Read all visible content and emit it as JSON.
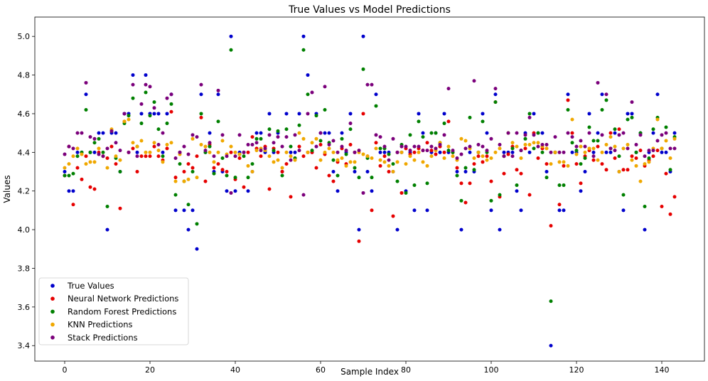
{
  "chart_data": {
    "type": "scatter",
    "title": "True Values vs Model Predictions",
    "xlabel": "Sample Index",
    "ylabel": "Values",
    "xlim": [
      -7,
      150
    ],
    "ylim": [
      3.32,
      5.1
    ],
    "xticks": [
      0,
      20,
      40,
      60,
      80,
      100,
      120,
      140
    ],
    "yticks": [
      3.4,
      3.6,
      3.8,
      4.0,
      4.2,
      4.4,
      4.6,
      4.8,
      5.0
    ],
    "ytick_labels": [
      "3.4",
      "3.6",
      "3.8",
      "4.0",
      "4.2",
      "4.4",
      "4.6",
      "4.8",
      "5.0"
    ],
    "grid": false,
    "legend_position": "lower-left",
    "x": [
      0,
      1,
      2,
      3,
      4,
      5,
      6,
      7,
      8,
      9,
      10,
      11,
      12,
      13,
      14,
      15,
      16,
      17,
      18,
      19,
      20,
      21,
      22,
      23,
      24,
      25,
      26,
      27,
      28,
      29,
      30,
      31,
      32,
      33,
      34,
      35,
      36,
      37,
      38,
      39,
      40,
      41,
      42,
      43,
      44,
      45,
      46,
      47,
      48,
      49,
      50,
      51,
      52,
      53,
      54,
      55,
      56,
      57,
      58,
      59,
      60,
      61,
      62,
      63,
      64,
      65,
      66,
      67,
      68,
      69,
      70,
      71,
      72,
      73,
      74,
      75,
      76,
      77,
      78,
      79,
      80,
      81,
      82,
      83,
      84,
      85,
      86,
      87,
      88,
      89,
      90,
      91,
      92,
      93,
      94,
      95,
      96,
      97,
      98,
      99,
      100,
      101,
      102,
      103,
      104,
      105,
      106,
      107,
      108,
      109,
      110,
      111,
      112,
      113,
      114,
      115,
      116,
      117,
      118,
      119,
      120,
      121,
      122,
      123,
      124,
      125,
      126,
      127,
      128,
      129,
      130,
      131,
      132,
      133,
      134,
      135,
      136,
      137,
      138,
      139,
      140,
      141,
      142,
      143
    ],
    "series": [
      {
        "name": "True Values",
        "color": "#0000cc",
        "values": [
          4.3,
          4.2,
          4.2,
          4.4,
          4.4,
          4.7,
          4.4,
          4.4,
          4.5,
          4.5,
          4.0,
          4.5,
          4.5,
          4.3,
          4.6,
          4.6,
          4.8,
          4.4,
          4.6,
          4.8,
          4.6,
          4.6,
          4.6,
          4.4,
          4.6,
          4.7,
          4.1,
          4.4,
          4.1,
          4.0,
          4.1,
          3.9,
          4.7,
          4.4,
          4.5,
          4.3,
          4.7,
          4.3,
          4.2,
          5.0,
          4.2,
          4.4,
          4.4,
          4.2,
          4.3,
          4.5,
          4.5,
          4.4,
          4.6,
          4.4,
          4.5,
          4.3,
          4.6,
          4.4,
          4.4,
          4.6,
          5.0,
          4.8,
          4.4,
          4.6,
          4.5,
          4.5,
          4.5,
          4.3,
          4.2,
          4.5,
          4.4,
          4.6,
          4.3,
          4.0,
          5.0,
          4.3,
          4.2,
          4.7,
          4.4,
          4.4,
          4.4,
          4.3,
          4.0,
          4.4,
          4.2,
          4.4,
          4.1,
          4.6,
          4.5,
          4.1,
          4.4,
          4.5,
          4.4,
          4.6,
          4.4,
          4.4,
          4.3,
          4.0,
          4.3,
          4.4,
          4.3,
          4.4,
          4.6,
          4.5,
          4.1,
          4.7,
          4.0,
          4.4,
          4.4,
          4.4,
          4.2,
          4.1,
          4.5,
          4.4,
          4.6,
          4.5,
          4.5,
          4.3,
          3.4,
          4.4,
          4.1,
          4.1,
          4.7,
          4.4,
          4.4,
          4.2,
          4.3,
          4.6,
          4.4,
          4.5,
          4.7,
          4.4,
          4.4,
          4.5,
          4.3,
          4.1,
          4.6,
          4.6,
          4.4,
          4.5,
          4.0,
          4.4,
          4.5,
          4.7,
          4.4,
          4.4,
          4.3,
          4.5
        ]
      },
      {
        "name": "Neural Network Predictions",
        "color": "#e60000",
        "values": [
          4.28,
          4.43,
          4.13,
          4.32,
          4.26,
          4.38,
          4.22,
          4.21,
          4.4,
          4.38,
          4.37,
          4.43,
          4.34,
          4.11,
          4.56,
          4.4,
          4.42,
          4.3,
          4.38,
          4.38,
          4.38,
          4.43,
          4.38,
          4.36,
          4.42,
          4.61,
          4.27,
          4.4,
          4.3,
          4.34,
          4.32,
          4.38,
          4.58,
          4.25,
          4.44,
          4.32,
          4.34,
          4.31,
          4.3,
          4.4,
          4.26,
          4.37,
          4.22,
          4.4,
          4.48,
          4.42,
          4.38,
          4.43,
          4.21,
          4.42,
          4.4,
          4.3,
          4.34,
          4.17,
          4.37,
          4.43,
          4.38,
          4.4,
          4.4,
          4.32,
          4.44,
          4.39,
          4.28,
          4.25,
          4.35,
          4.42,
          4.34,
          4.44,
          4.4,
          3.94,
          4.6,
          4.38,
          4.1,
          4.45,
          4.33,
          4.38,
          4.3,
          4.07,
          4.4,
          4.19,
          4.42,
          4.39,
          4.4,
          4.42,
          4.41,
          4.45,
          4.41,
          4.39,
          4.43,
          4.4,
          4.56,
          4.4,
          4.32,
          4.24,
          4.14,
          4.24,
          4.34,
          4.38,
          4.35,
          4.38,
          4.25,
          4.66,
          4.17,
          4.29,
          4.39,
          4.43,
          4.31,
          4.29,
          4.42,
          4.18,
          4.5,
          4.37,
          4.42,
          4.34,
          4.02,
          4.4,
          4.13,
          4.33,
          4.67,
          4.5,
          4.34,
          4.24,
          4.38,
          4.41,
          4.36,
          4.43,
          4.34,
          4.31,
          4.5,
          4.37,
          4.52,
          4.31,
          4.31,
          4.38,
          4.37,
          4.41,
          4.33,
          4.36,
          4.38,
          4.41,
          4.12,
          4.29,
          4.08,
          4.17
        ]
      },
      {
        "name": "Random Forest Predictions",
        "color": "#008000",
        "values": [
          4.28,
          4.28,
          4.29,
          4.38,
          4.4,
          4.62,
          4.4,
          4.45,
          4.47,
          4.4,
          4.12,
          4.51,
          4.37,
          4.3,
          4.55,
          4.59,
          4.68,
          4.43,
          4.55,
          4.71,
          4.59,
          4.66,
          4.52,
          4.38,
          4.55,
          4.65,
          4.18,
          4.34,
          4.25,
          4.13,
          4.3,
          4.03,
          4.6,
          4.4,
          4.43,
          4.29,
          4.56,
          4.37,
          4.28,
          4.93,
          4.27,
          4.39,
          4.38,
          4.27,
          4.34,
          4.47,
          4.47,
          4.41,
          4.52,
          4.41,
          4.51,
          4.28,
          4.52,
          4.43,
          4.37,
          4.54,
          4.93,
          4.7,
          4.41,
          4.59,
          4.46,
          4.62,
          4.45,
          4.36,
          4.28,
          4.47,
          4.39,
          4.52,
          4.32,
          4.27,
          4.83,
          4.37,
          4.27,
          4.64,
          4.42,
          4.42,
          4.39,
          4.34,
          4.25,
          4.44,
          4.19,
          4.49,
          4.23,
          4.56,
          4.48,
          4.24,
          4.5,
          4.5,
          4.45,
          4.55,
          4.41,
          4.4,
          4.28,
          4.15,
          4.32,
          4.58,
          4.31,
          4.4,
          4.56,
          4.4,
          4.15,
          4.66,
          4.18,
          4.38,
          4.5,
          4.42,
          4.23,
          4.41,
          4.47,
          4.6,
          4.42,
          4.5,
          4.4,
          4.27,
          3.63,
          4.4,
          4.23,
          4.23,
          4.62,
          4.45,
          4.41,
          4.34,
          4.37,
          4.53,
          4.46,
          4.46,
          4.62,
          4.67,
          4.42,
          4.52,
          4.38,
          4.18,
          4.57,
          4.58,
          4.4,
          4.5,
          4.12,
          4.37,
          4.52,
          4.58,
          4.42,
          4.53,
          4.31,
          4.48
        ]
      },
      {
        "name": "KNN Predictions",
        "color": "#f0a800",
        "values": [
          4.32,
          4.34,
          4.38,
          4.42,
          4.39,
          4.34,
          4.35,
          4.35,
          4.42,
          4.38,
          4.32,
          4.52,
          4.38,
          4.36,
          4.56,
          4.57,
          4.45,
          4.43,
          4.46,
          4.4,
          4.4,
          4.45,
          4.41,
          4.35,
          4.44,
          4.45,
          4.25,
          4.39,
          4.25,
          4.26,
          4.47,
          4.27,
          4.44,
          4.43,
          4.4,
          4.35,
          4.4,
          4.46,
          4.39,
          4.43,
          4.4,
          4.39,
          4.4,
          4.33,
          4.3,
          4.41,
          4.42,
          4.41,
          4.38,
          4.35,
          4.36,
          4.32,
          4.4,
          4.38,
          4.36,
          4.5,
          4.47,
          4.4,
          4.45,
          4.47,
          4.36,
          4.4,
          4.42,
          4.4,
          4.36,
          4.37,
          4.33,
          4.35,
          4.35,
          4.4,
          4.39,
          4.38,
          4.37,
          4.42,
          4.36,
          4.35,
          4.33,
          4.3,
          4.35,
          4.4,
          4.34,
          4.38,
          4.36,
          4.4,
          4.35,
          4.33,
          4.38,
          4.41,
          4.45,
          4.37,
          4.43,
          4.38,
          4.36,
          4.47,
          4.46,
          4.42,
          4.37,
          4.4,
          4.38,
          4.36,
          4.37,
          4.4,
          4.42,
          4.38,
          4.5,
          4.45,
          4.43,
          4.37,
          4.44,
          4.44,
          4.45,
          4.45,
          4.43,
          4.42,
          4.34,
          4.4,
          4.35,
          4.35,
          4.33,
          4.57,
          4.39,
          4.43,
          4.4,
          4.42,
          4.42,
          4.36,
          4.4,
          4.44,
          4.48,
          4.43,
          4.3,
          4.42,
          4.44,
          4.36,
          4.33,
          4.25,
          4.34,
          4.35,
          4.42,
          4.57,
          4.42,
          4.46,
          4.37,
          4.47
        ]
      },
      {
        "name": "Stack Predictions",
        "color": "#7b007b",
        "values": [
          4.39,
          4.43,
          4.42,
          4.5,
          4.5,
          4.76,
          4.48,
          4.47,
          4.39,
          4.38,
          4.42,
          4.51,
          4.45,
          4.41,
          4.6,
          4.4,
          4.75,
          4.38,
          4.65,
          4.75,
          4.74,
          4.63,
          4.44,
          4.5,
          4.68,
          4.7,
          4.37,
          4.4,
          4.43,
          4.39,
          4.49,
          4.48,
          4.75,
          4.41,
          4.45,
          4.38,
          4.72,
          4.49,
          4.38,
          4.19,
          4.38,
          4.49,
          4.4,
          4.44,
          4.44,
          4.45,
          4.41,
          4.42,
          4.49,
          4.45,
          4.48,
          4.43,
          4.48,
          4.36,
          4.49,
          4.41,
          4.18,
          4.6,
          4.71,
          4.43,
          4.5,
          4.74,
          4.44,
          4.46,
          4.4,
          4.43,
          4.41,
          4.55,
          4.4,
          4.41,
          4.19,
          4.75,
          4.75,
          4.49,
          4.48,
          4.43,
          4.36,
          4.47,
          4.4,
          4.43,
          4.43,
          4.41,
          4.43,
          4.43,
          4.41,
          4.41,
          4.43,
          4.42,
          4.44,
          4.49,
          4.73,
          4.41,
          4.37,
          4.39,
          4.42,
          4.43,
          4.77,
          4.44,
          4.43,
          4.41,
          4.47,
          4.73,
          4.44,
          4.38,
          4.5,
          4.38,
          4.5,
          4.41,
          4.49,
          4.58,
          4.49,
          4.43,
          4.44,
          4.44,
          4.4,
          4.48,
          4.4,
          4.4,
          4.5,
          4.48,
          4.43,
          4.46,
          4.43,
          4.5,
          4.38,
          4.76,
          4.49,
          4.7,
          4.42,
          4.41,
          4.49,
          4.5,
          4.42,
          4.66,
          4.44,
          4.49,
          4.38,
          4.41,
          4.41,
          4.46,
          4.49,
          4.5,
          4.42,
          4.42
        ]
      }
    ]
  }
}
